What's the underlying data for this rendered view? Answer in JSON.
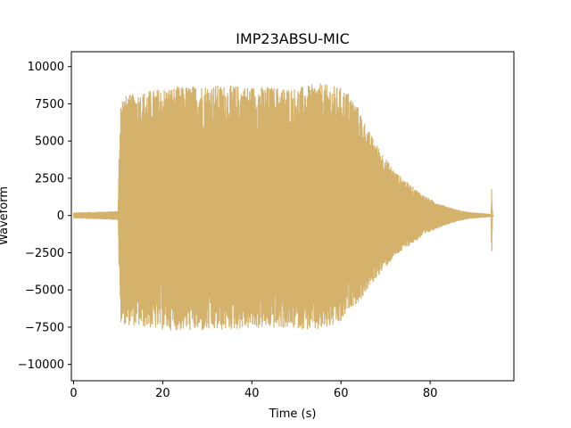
{
  "chart_data": {
    "type": "line",
    "title": "IMP23ABSU-MIC",
    "xlabel": "Time (s)",
    "ylabel": "Waveform",
    "xlim": [
      -0.5,
      98.8
    ],
    "ylim": [
      -11100,
      11000
    ],
    "x_ticks": [
      0,
      20,
      40,
      60,
      80
    ],
    "y_ticks": [
      -10000,
      -7500,
      -5000,
      -2500,
      0,
      2500,
      5000,
      7500,
      10000
    ],
    "grid": false,
    "series": [
      {
        "color": "#D4B26B",
        "envelope": {
          "t": [
            0,
            10.0,
            10.2,
            10.6,
            20,
            30,
            40,
            50,
            55,
            60,
            62,
            64,
            66,
            68,
            70,
            72,
            75,
            78,
            80,
            83,
            86,
            89,
            92,
            93.7,
            93.8,
            94.0,
            94.2
          ],
          "top": [
            200,
            300,
            4000,
            8000,
            8600,
            8800,
            8700,
            8600,
            8900,
            8600,
            8200,
            7200,
            5800,
            4800,
            3900,
            3000,
            2200,
            1500,
            1100,
            700,
            400,
            220,
            150,
            100,
            2100,
            80,
            0
          ],
          "bottom": [
            -200,
            -300,
            -4000,
            -7300,
            -7700,
            -7800,
            -7600,
            -7600,
            -7800,
            -7300,
            -6200,
            -5900,
            -5000,
            -4200,
            -3500,
            -2800,
            -2100,
            -1500,
            -1100,
            -700,
            -400,
            -220,
            -150,
            -100,
            -3100,
            -80,
            0
          ]
        }
      }
    ]
  }
}
